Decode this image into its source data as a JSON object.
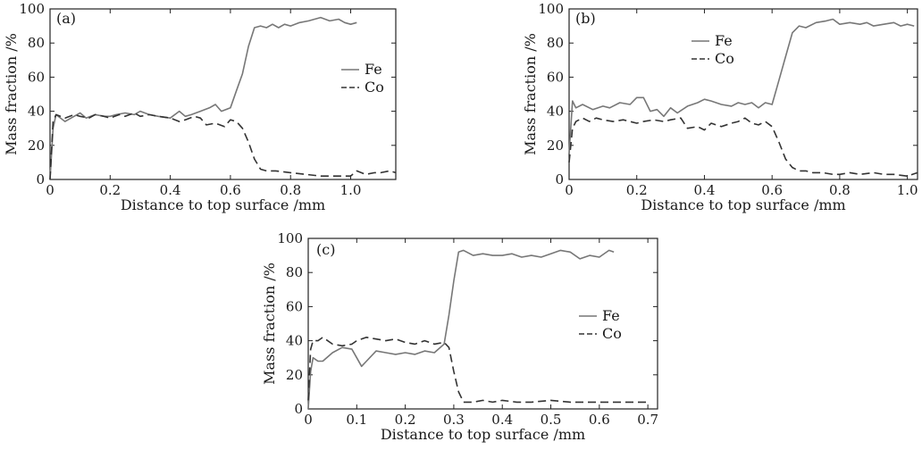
{
  "chart_data": [
    {
      "type": "line",
      "panel_label": "(a)",
      "xlabel": "Distance to top surface /mm",
      "ylabel": "Mass fraction /%",
      "xlim": [
        0,
        1.15
      ],
      "ylim": [
        0,
        100
      ],
      "xticks": [
        0,
        0.2,
        0.4,
        0.6,
        0.8,
        1.0
      ],
      "xtick_labels": [
        "0",
        "0.2",
        "0.4",
        "0.6",
        "0.8",
        "1.0"
      ],
      "yticks": [
        0,
        20,
        40,
        60,
        80,
        100
      ],
      "ytick_labels": [
        "0",
        "20",
        "40",
        "60",
        "80",
        "100"
      ],
      "legend_position": "right-middle",
      "series": [
        {
          "name": "Fe",
          "style": "solid",
          "color": "#777777",
          "x": [
            0,
            0.01,
            0.02,
            0.05,
            0.08,
            0.1,
            0.12,
            0.15,
            0.18,
            0.2,
            0.22,
            0.25,
            0.28,
            0.3,
            0.33,
            0.36,
            0.4,
            0.43,
            0.45,
            0.47,
            0.5,
            0.53,
            0.55,
            0.57,
            0.6,
            0.62,
            0.64,
            0.66,
            0.68,
            0.7,
            0.72,
            0.74,
            0.76,
            0.78,
            0.8,
            0.83,
            0.86,
            0.88,
            0.9,
            0.93,
            0.96,
            0.98,
            1.0,
            1.02
          ],
          "y": [
            0,
            30,
            38,
            34,
            37,
            39,
            36,
            38,
            37,
            37,
            38,
            39,
            38,
            40,
            38,
            37,
            36,
            40,
            37,
            38,
            40,
            42,
            44,
            40,
            42,
            52,
            62,
            78,
            89,
            90,
            89,
            91,
            89,
            91,
            90,
            92,
            93,
            94,
            95,
            93,
            94,
            92,
            91,
            92
          ]
        },
        {
          "name": "Co",
          "style": "dashed",
          "color": "#333333",
          "x": [
            0,
            0.01,
            0.02,
            0.05,
            0.08,
            0.1,
            0.13,
            0.15,
            0.18,
            0.2,
            0.23,
            0.25,
            0.28,
            0.3,
            0.33,
            0.36,
            0.4,
            0.43,
            0.45,
            0.48,
            0.5,
            0.52,
            0.55,
            0.58,
            0.6,
            0.62,
            0.64,
            0.66,
            0.68,
            0.7,
            0.72,
            0.75,
            0.8,
            0.85,
            0.9,
            0.95,
            1.0,
            1.02,
            1.05,
            1.08,
            1.1,
            1.13,
            1.15
          ],
          "y": [
            0,
            34,
            38,
            36,
            38,
            37,
            36,
            38,
            37,
            36,
            38,
            37,
            39,
            37,
            38,
            37,
            36,
            34,
            35,
            37,
            36,
            32,
            33,
            31,
            35,
            34,
            30,
            22,
            12,
            6,
            5,
            5,
            4,
            3,
            2,
            2,
            2,
            5,
            3,
            4,
            4,
            5,
            4
          ]
        }
      ]
    },
    {
      "type": "line",
      "panel_label": "(b)",
      "xlabel": "Distance to top surface /mm",
      "ylabel": "Mass fraction /%",
      "xlim": [
        0,
        1.03
      ],
      "ylim": [
        0,
        100
      ],
      "xticks": [
        0,
        0.2,
        0.4,
        0.6,
        0.8,
        1.0
      ],
      "xtick_labels": [
        "0",
        "0.2",
        "0.4",
        "0.6",
        "0.8",
        "1.0"
      ],
      "yticks": [
        0,
        20,
        40,
        60,
        80,
        100
      ],
      "ytick_labels": [
        "0",
        "20",
        "40",
        "60",
        "80",
        "100"
      ],
      "legend_position": "top-left",
      "series": [
        {
          "name": "Fe",
          "style": "solid",
          "color": "#777777",
          "x": [
            0,
            0.01,
            0.02,
            0.04,
            0.07,
            0.1,
            0.12,
            0.15,
            0.18,
            0.2,
            0.22,
            0.24,
            0.26,
            0.28,
            0.3,
            0.32,
            0.35,
            0.38,
            0.4,
            0.42,
            0.45,
            0.48,
            0.5,
            0.52,
            0.54,
            0.56,
            0.58,
            0.6,
            0.62,
            0.64,
            0.66,
            0.68,
            0.7,
            0.73,
            0.76,
            0.78,
            0.8,
            0.83,
            0.86,
            0.88,
            0.9,
            0.93,
            0.96,
            0.98,
            1.0,
            1.02
          ],
          "y": [
            15,
            46,
            42,
            44,
            41,
            43,
            42,
            45,
            44,
            48,
            48,
            40,
            41,
            37,
            42,
            39,
            43,
            45,
            47,
            46,
            44,
            43,
            45,
            44,
            45,
            42,
            45,
            44,
            58,
            72,
            86,
            90,
            89,
            92,
            93,
            94,
            91,
            92,
            91,
            92,
            90,
            91,
            92,
            90,
            91,
            90
          ]
        },
        {
          "name": "Co",
          "style": "dashed",
          "color": "#333333",
          "x": [
            0,
            0.01,
            0.02,
            0.04,
            0.06,
            0.08,
            0.1,
            0.13,
            0.16,
            0.2,
            0.22,
            0.25,
            0.28,
            0.3,
            0.33,
            0.35,
            0.38,
            0.4,
            0.42,
            0.45,
            0.48,
            0.5,
            0.52,
            0.54,
            0.56,
            0.58,
            0.6,
            0.62,
            0.64,
            0.66,
            0.68,
            0.7,
            0.72,
            0.75,
            0.78,
            0.8,
            0.83,
            0.86,
            0.9,
            0.93,
            0.96,
            1.0,
            1.03
          ],
          "y": [
            10,
            30,
            34,
            36,
            34,
            36,
            35,
            34,
            35,
            33,
            34,
            35,
            34,
            35,
            36,
            30,
            31,
            29,
            33,
            31,
            33,
            34,
            36,
            33,
            32,
            34,
            31,
            22,
            12,
            7,
            5,
            5,
            4,
            4,
            3,
            3,
            4,
            3,
            4,
            3,
            3,
            2,
            4
          ]
        }
      ]
    },
    {
      "type": "line",
      "panel_label": "(c)",
      "xlabel": "Distance to top surface /mm",
      "ylabel": "Mass fraction /%",
      "xlim": [
        0,
        0.72
      ],
      "ylim": [
        0,
        100
      ],
      "xticks": [
        0,
        0.1,
        0.2,
        0.3,
        0.4,
        0.5,
        0.6,
        0.7
      ],
      "xtick_labels": [
        "0",
        "0.1",
        "0.2",
        "0.3",
        "0.4",
        "0.5",
        "0.6",
        "0.7"
      ],
      "yticks": [
        0,
        20,
        40,
        60,
        80,
        100
      ],
      "ytick_labels": [
        "0",
        "20",
        "40",
        "60",
        "80",
        "100"
      ],
      "legend_position": "right-middle",
      "series": [
        {
          "name": "Fe",
          "style": "solid",
          "color": "#777777",
          "x": [
            0,
            0.005,
            0.01,
            0.02,
            0.03,
            0.05,
            0.07,
            0.09,
            0.1,
            0.11,
            0.12,
            0.14,
            0.16,
            0.18,
            0.2,
            0.22,
            0.24,
            0.26,
            0.28,
            0.29,
            0.3,
            0.31,
            0.32,
            0.34,
            0.36,
            0.38,
            0.4,
            0.42,
            0.44,
            0.46,
            0.48,
            0.5,
            0.52,
            0.54,
            0.56,
            0.58,
            0.6,
            0.62,
            0.63
          ],
          "y": [
            0,
            22,
            30,
            28,
            28,
            33,
            36,
            35,
            30,
            25,
            28,
            34,
            33,
            32,
            33,
            32,
            34,
            33,
            38,
            55,
            75,
            92,
            93,
            90,
            91,
            90,
            90,
            91,
            89,
            90,
            89,
            91,
            93,
            92,
            88,
            90,
            89,
            93,
            92
          ]
        },
        {
          "name": "Co",
          "style": "dashed",
          "color": "#333333",
          "x": [
            0,
            0.005,
            0.01,
            0.02,
            0.03,
            0.05,
            0.07,
            0.09,
            0.1,
            0.12,
            0.14,
            0.16,
            0.18,
            0.2,
            0.22,
            0.24,
            0.26,
            0.28,
            0.29,
            0.3,
            0.31,
            0.32,
            0.34,
            0.36,
            0.38,
            0.4,
            0.43,
            0.46,
            0.5,
            0.54,
            0.58,
            0.62,
            0.66,
            0.7
          ],
          "y": [
            5,
            35,
            40,
            40,
            42,
            38,
            37,
            38,
            40,
            42,
            41,
            40,
            41,
            39,
            38,
            40,
            38,
            39,
            36,
            22,
            10,
            4,
            4,
            5,
            4,
            5,
            4,
            4,
            5,
            4,
            4,
            4,
            4,
            4
          ]
        }
      ]
    }
  ]
}
